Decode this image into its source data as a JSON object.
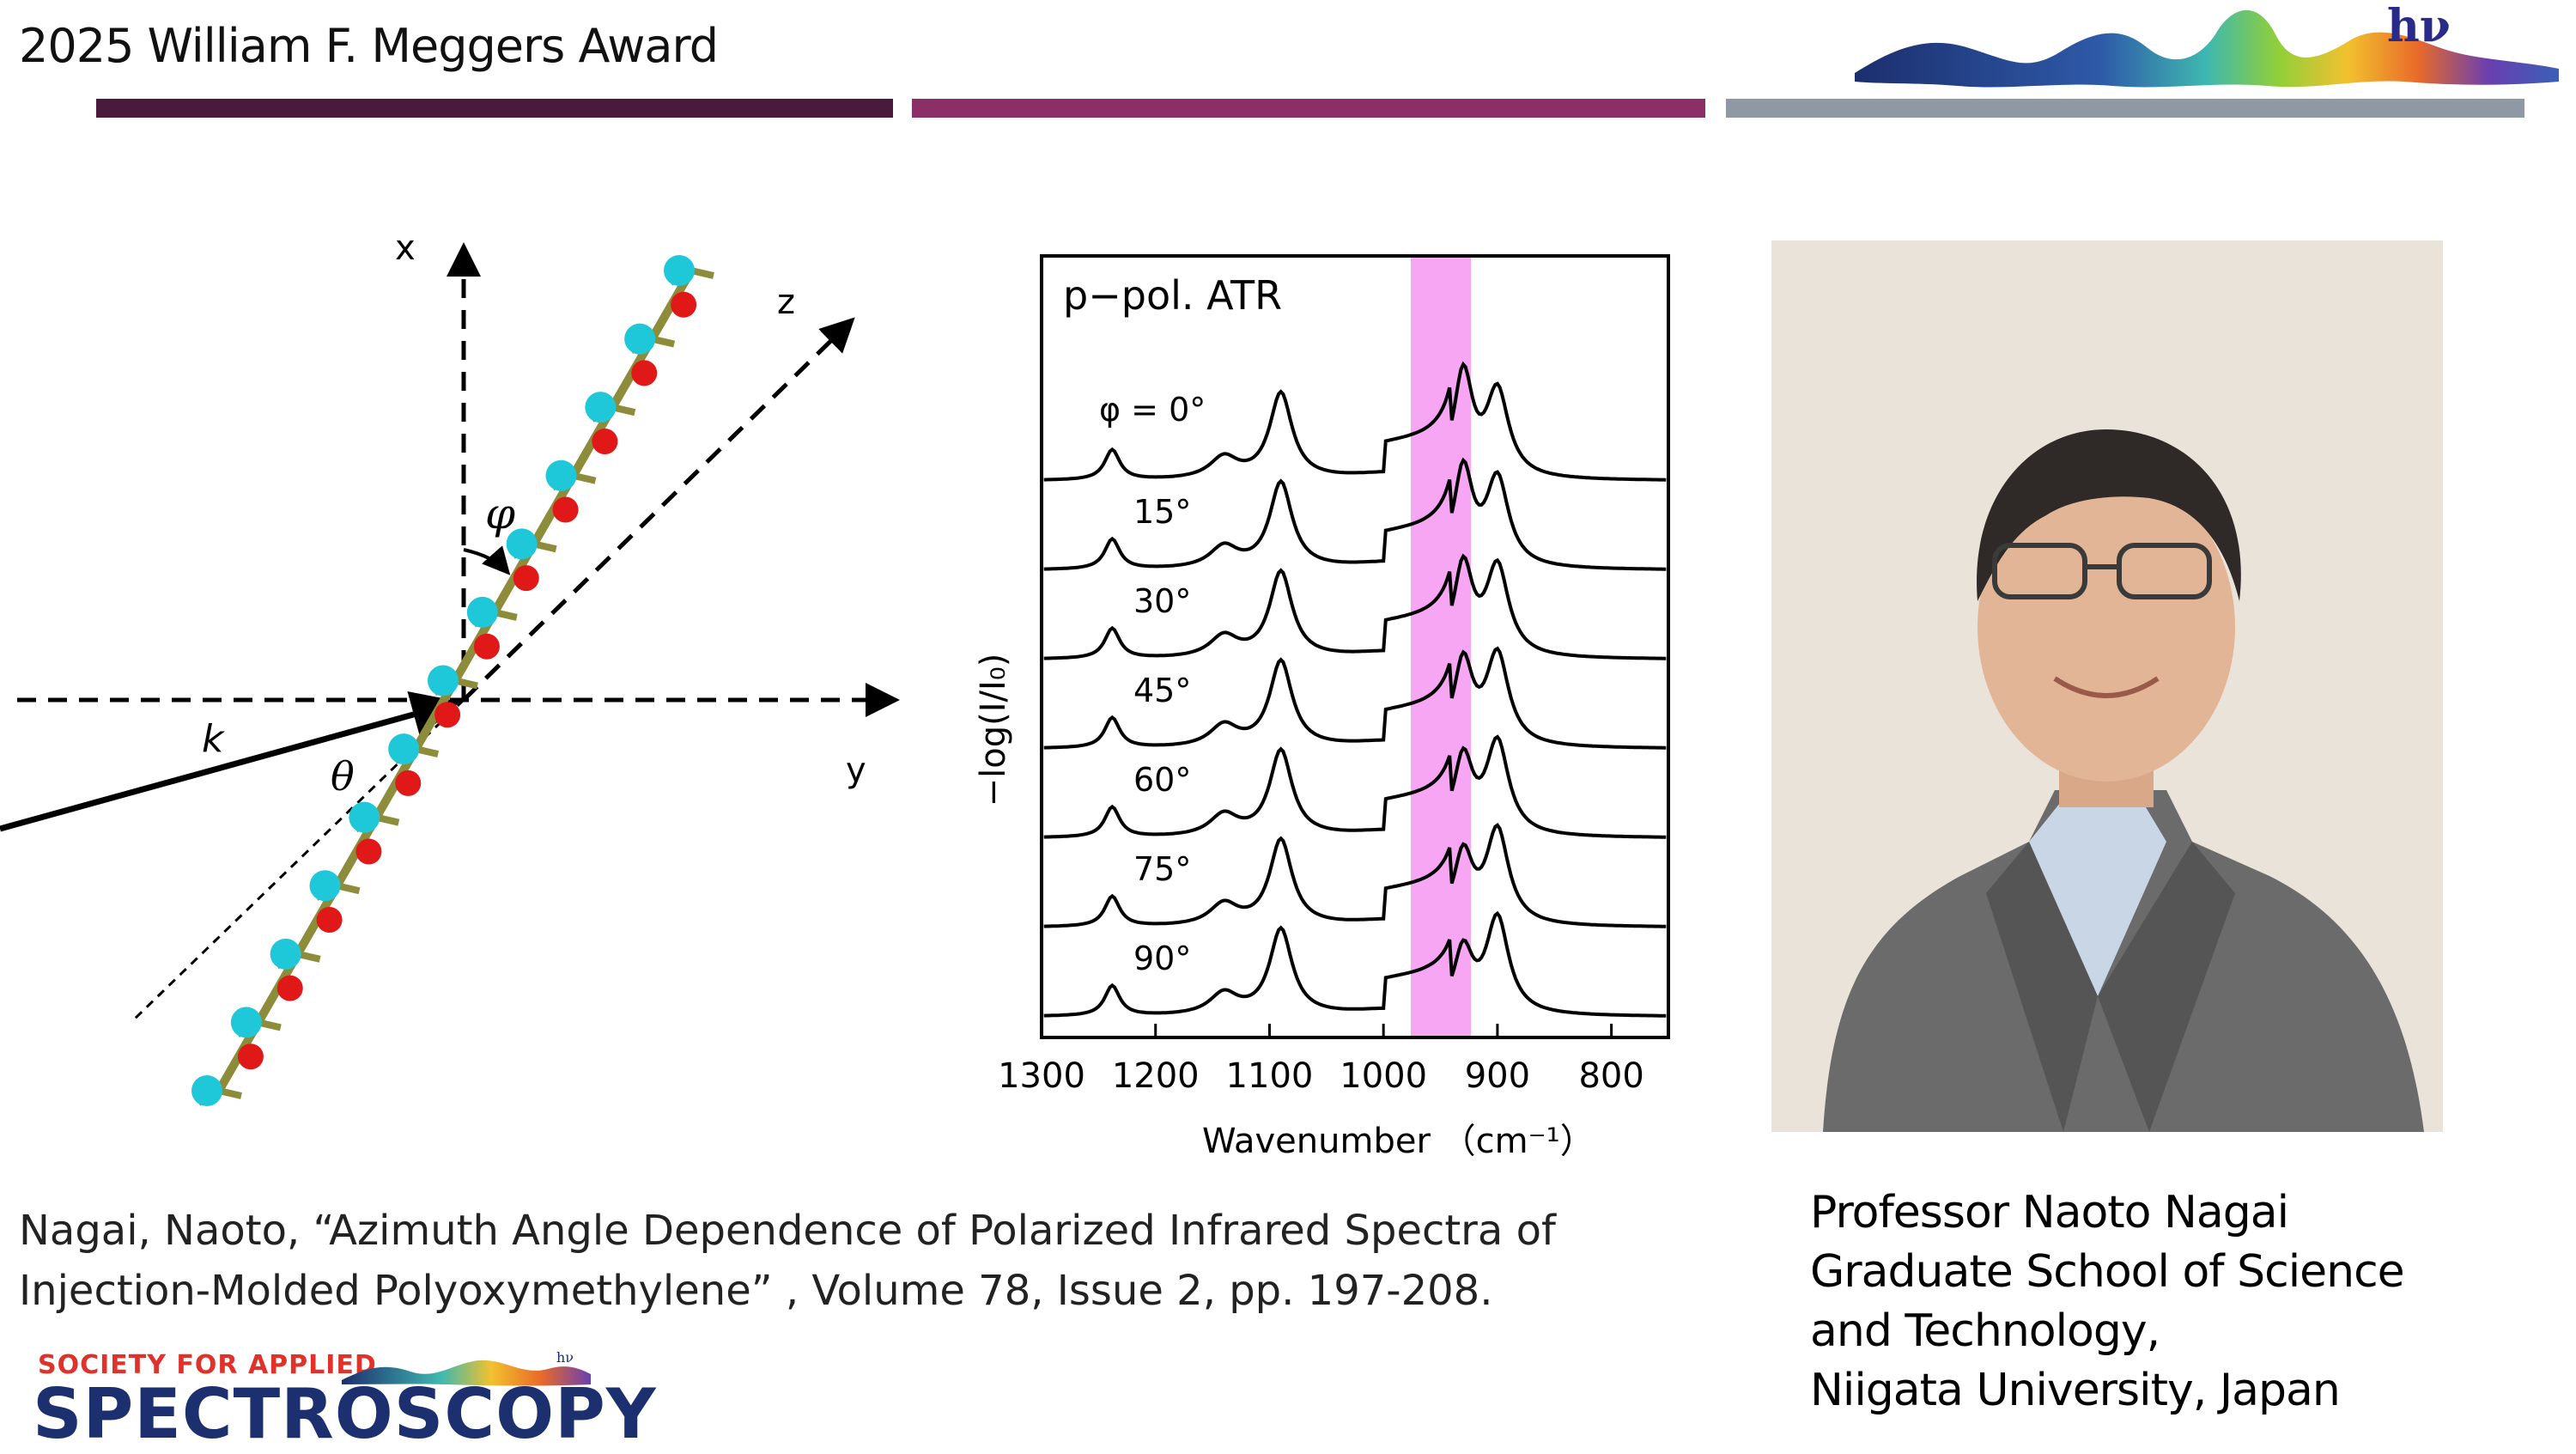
{
  "header": {
    "title": "2025  William F. Meggers Award",
    "bar_colors": [
      "#4a1a3c",
      "#8c2f66",
      "#8f99a3"
    ],
    "logo_text": "hν"
  },
  "diagram": {
    "axis_x": "x",
    "axis_y": "y",
    "axis_z": "z",
    "phi": "φ",
    "theta": "θ",
    "k": "k"
  },
  "spectra_panel": {
    "header_label": "p−pol. ATR",
    "y_axis_label": "−log(I/I₀)",
    "x_axis_label": "Wavenumber （cm⁻¹）",
    "x_ticks": [
      "1300",
      "1200",
      "1100",
      "1000",
      "900",
      "800"
    ],
    "curve_labels": [
      "φ = 0°",
      "15°",
      "30°",
      "45°",
      "60°",
      "75°",
      "90°"
    ],
    "highlight_color": "#f6a6f3"
  },
  "citation": {
    "line1": "Nagai, Naoto, “Azimuth Angle Dependence of Polarized Infrared Spectra of",
    "line2": "Injection-Molded Polyoxymethylene” , Volume 78, Issue 2, pp. 197-208."
  },
  "caption": {
    "line1": "Professor Naoto Nagai",
    "line2": "Graduate School of Science",
    "line3": "and Technology,",
    "line4": "Niigata University, Japan"
  },
  "footer_logo": {
    "small": "SOCIETY FOR APPLIED",
    "big": "SPECTROSCOPY",
    "hv": "hν"
  }
}
